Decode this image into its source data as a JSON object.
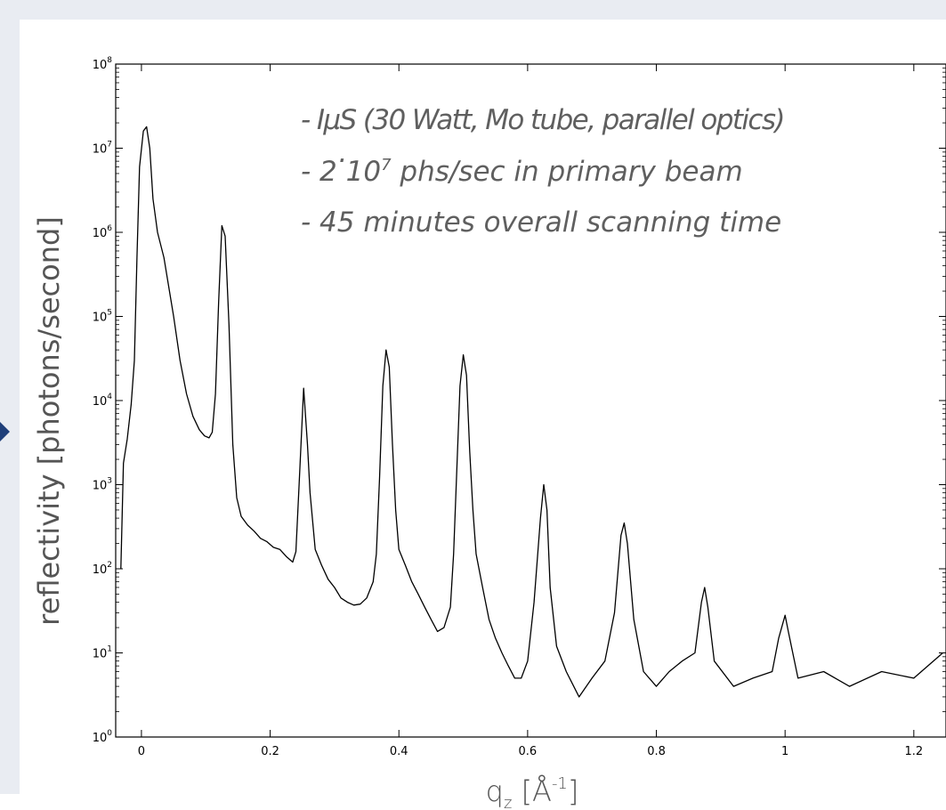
{
  "chart_data": {
    "type": "line",
    "xlabel_base": "q",
    "xlabel_sub": "z",
    "xlabel_unit_open": "[Å",
    "xlabel_unit_sup": "-1",
    "xlabel_unit_close": "]",
    "ylabel": "reflectivity [photons/second]",
    "xlim": [
      -0.04,
      1.25
    ],
    "ylim": [
      1,
      100000000
    ],
    "yscale": "log",
    "grid": false,
    "x_ticks": [
      "0",
      "0.2",
      "0.4",
      "0.6",
      "0.8",
      "1",
      "1.2"
    ],
    "x_tick_values": [
      0,
      0.2,
      0.4,
      0.6,
      0.8,
      1.0,
      1.2
    ],
    "y_tick_exponents": [
      0,
      1,
      2,
      3,
      4,
      5,
      6,
      7,
      8
    ],
    "y_tick_base": "10",
    "annotations": {
      "line1": "- IµS (30 Watt, Mo tube, parallel optics)",
      "line2_prefix": "- 2",
      "line2_dot": "·",
      "line2_base": "10",
      "line2_sup": "7",
      "line2_rest": " phs/sec in primary beam",
      "line3": "- 45 minutes overall scanning time"
    },
    "series": [
      {
        "points": [
          [
            -0.032,
            100
          ],
          [
            -0.028,
            1800
          ],
          [
            -0.022,
            3500
          ],
          [
            -0.016,
            9000
          ],
          [
            -0.011,
            30000
          ],
          [
            -0.007,
            500000
          ],
          [
            -0.003,
            6000000
          ],
          [
            0.003,
            16000000
          ],
          [
            0.008,
            18000000
          ],
          [
            0.013,
            10000000
          ],
          [
            0.018,
            2500000
          ],
          [
            0.025,
            1000000
          ],
          [
            0.035,
            500000
          ],
          [
            0.05,
            100000
          ],
          [
            0.06,
            30000
          ],
          [
            0.07,
            12000
          ],
          [
            0.08,
            6500
          ],
          [
            0.09,
            4500
          ],
          [
            0.098,
            3800
          ],
          [
            0.105,
            3600
          ],
          [
            0.11,
            4200
          ],
          [
            0.115,
            12000
          ],
          [
            0.12,
            150000
          ],
          [
            0.125,
            1200000
          ],
          [
            0.13,
            900000
          ],
          [
            0.136,
            80000
          ],
          [
            0.142,
            3000
          ],
          [
            0.148,
            700
          ],
          [
            0.155,
            420
          ],
          [
            0.165,
            330
          ],
          [
            0.175,
            280
          ],
          [
            0.185,
            230
          ],
          [
            0.195,
            210
          ],
          [
            0.205,
            180
          ],
          [
            0.215,
            170
          ],
          [
            0.225,
            140
          ],
          [
            0.235,
            120
          ],
          [
            0.24,
            160
          ],
          [
            0.245,
            1000
          ],
          [
            0.252,
            14000
          ],
          [
            0.258,
            3000
          ],
          [
            0.262,
            800
          ],
          [
            0.27,
            170
          ],
          [
            0.28,
            110
          ],
          [
            0.29,
            75
          ],
          [
            0.3,
            60
          ],
          [
            0.31,
            45
          ],
          [
            0.32,
            40
          ],
          [
            0.33,
            37
          ],
          [
            0.34,
            38
          ],
          [
            0.35,
            45
          ],
          [
            0.36,
            70
          ],
          [
            0.365,
            150
          ],
          [
            0.37,
            1200
          ],
          [
            0.375,
            15000
          ],
          [
            0.38,
            40000
          ],
          [
            0.385,
            25000
          ],
          [
            0.39,
            3000
          ],
          [
            0.395,
            500
          ],
          [
            0.4,
            170
          ],
          [
            0.41,
            110
          ],
          [
            0.42,
            70
          ],
          [
            0.43,
            50
          ],
          [
            0.44,
            35
          ],
          [
            0.45,
            25
          ],
          [
            0.46,
            18
          ],
          [
            0.47,
            20
          ],
          [
            0.48,
            35
          ],
          [
            0.485,
            150
          ],
          [
            0.49,
            1500
          ],
          [
            0.495,
            15000
          ],
          [
            0.5,
            35000
          ],
          [
            0.505,
            20000
          ],
          [
            0.51,
            2500
          ],
          [
            0.515,
            500
          ],
          [
            0.52,
            150
          ],
          [
            0.53,
            60
          ],
          [
            0.54,
            25
          ],
          [
            0.55,
            15
          ],
          [
            0.56,
            10
          ],
          [
            0.57,
            7
          ],
          [
            0.58,
            5
          ],
          [
            0.59,
            5
          ],
          [
            0.6,
            8
          ],
          [
            0.61,
            40
          ],
          [
            0.62,
            400
          ],
          [
            0.625,
            1000
          ],
          [
            0.63,
            500
          ],
          [
            0.635,
            60
          ],
          [
            0.645,
            12
          ],
          [
            0.66,
            6
          ],
          [
            0.68,
            3
          ],
          [
            0.7,
            5
          ],
          [
            0.72,
            8
          ],
          [
            0.735,
            30
          ],
          [
            0.745,
            250
          ],
          [
            0.75,
            350
          ],
          [
            0.755,
            200
          ],
          [
            0.765,
            25
          ],
          [
            0.78,
            6
          ],
          [
            0.8,
            4
          ],
          [
            0.82,
            6
          ],
          [
            0.84,
            8
          ],
          [
            0.86,
            10
          ],
          [
            0.87,
            40
          ],
          [
            0.875,
            60
          ],
          [
            0.88,
            35
          ],
          [
            0.89,
            8
          ],
          [
            0.92,
            4
          ],
          [
            0.95,
            5
          ],
          [
            0.98,
            6
          ],
          [
            0.99,
            15
          ],
          [
            1.0,
            28
          ],
          [
            1.005,
            18
          ],
          [
            1.02,
            5
          ],
          [
            1.06,
            6
          ],
          [
            1.1,
            4
          ],
          [
            1.15,
            6
          ],
          [
            1.2,
            5
          ],
          [
            1.245,
            10
          ]
        ]
      }
    ]
  }
}
